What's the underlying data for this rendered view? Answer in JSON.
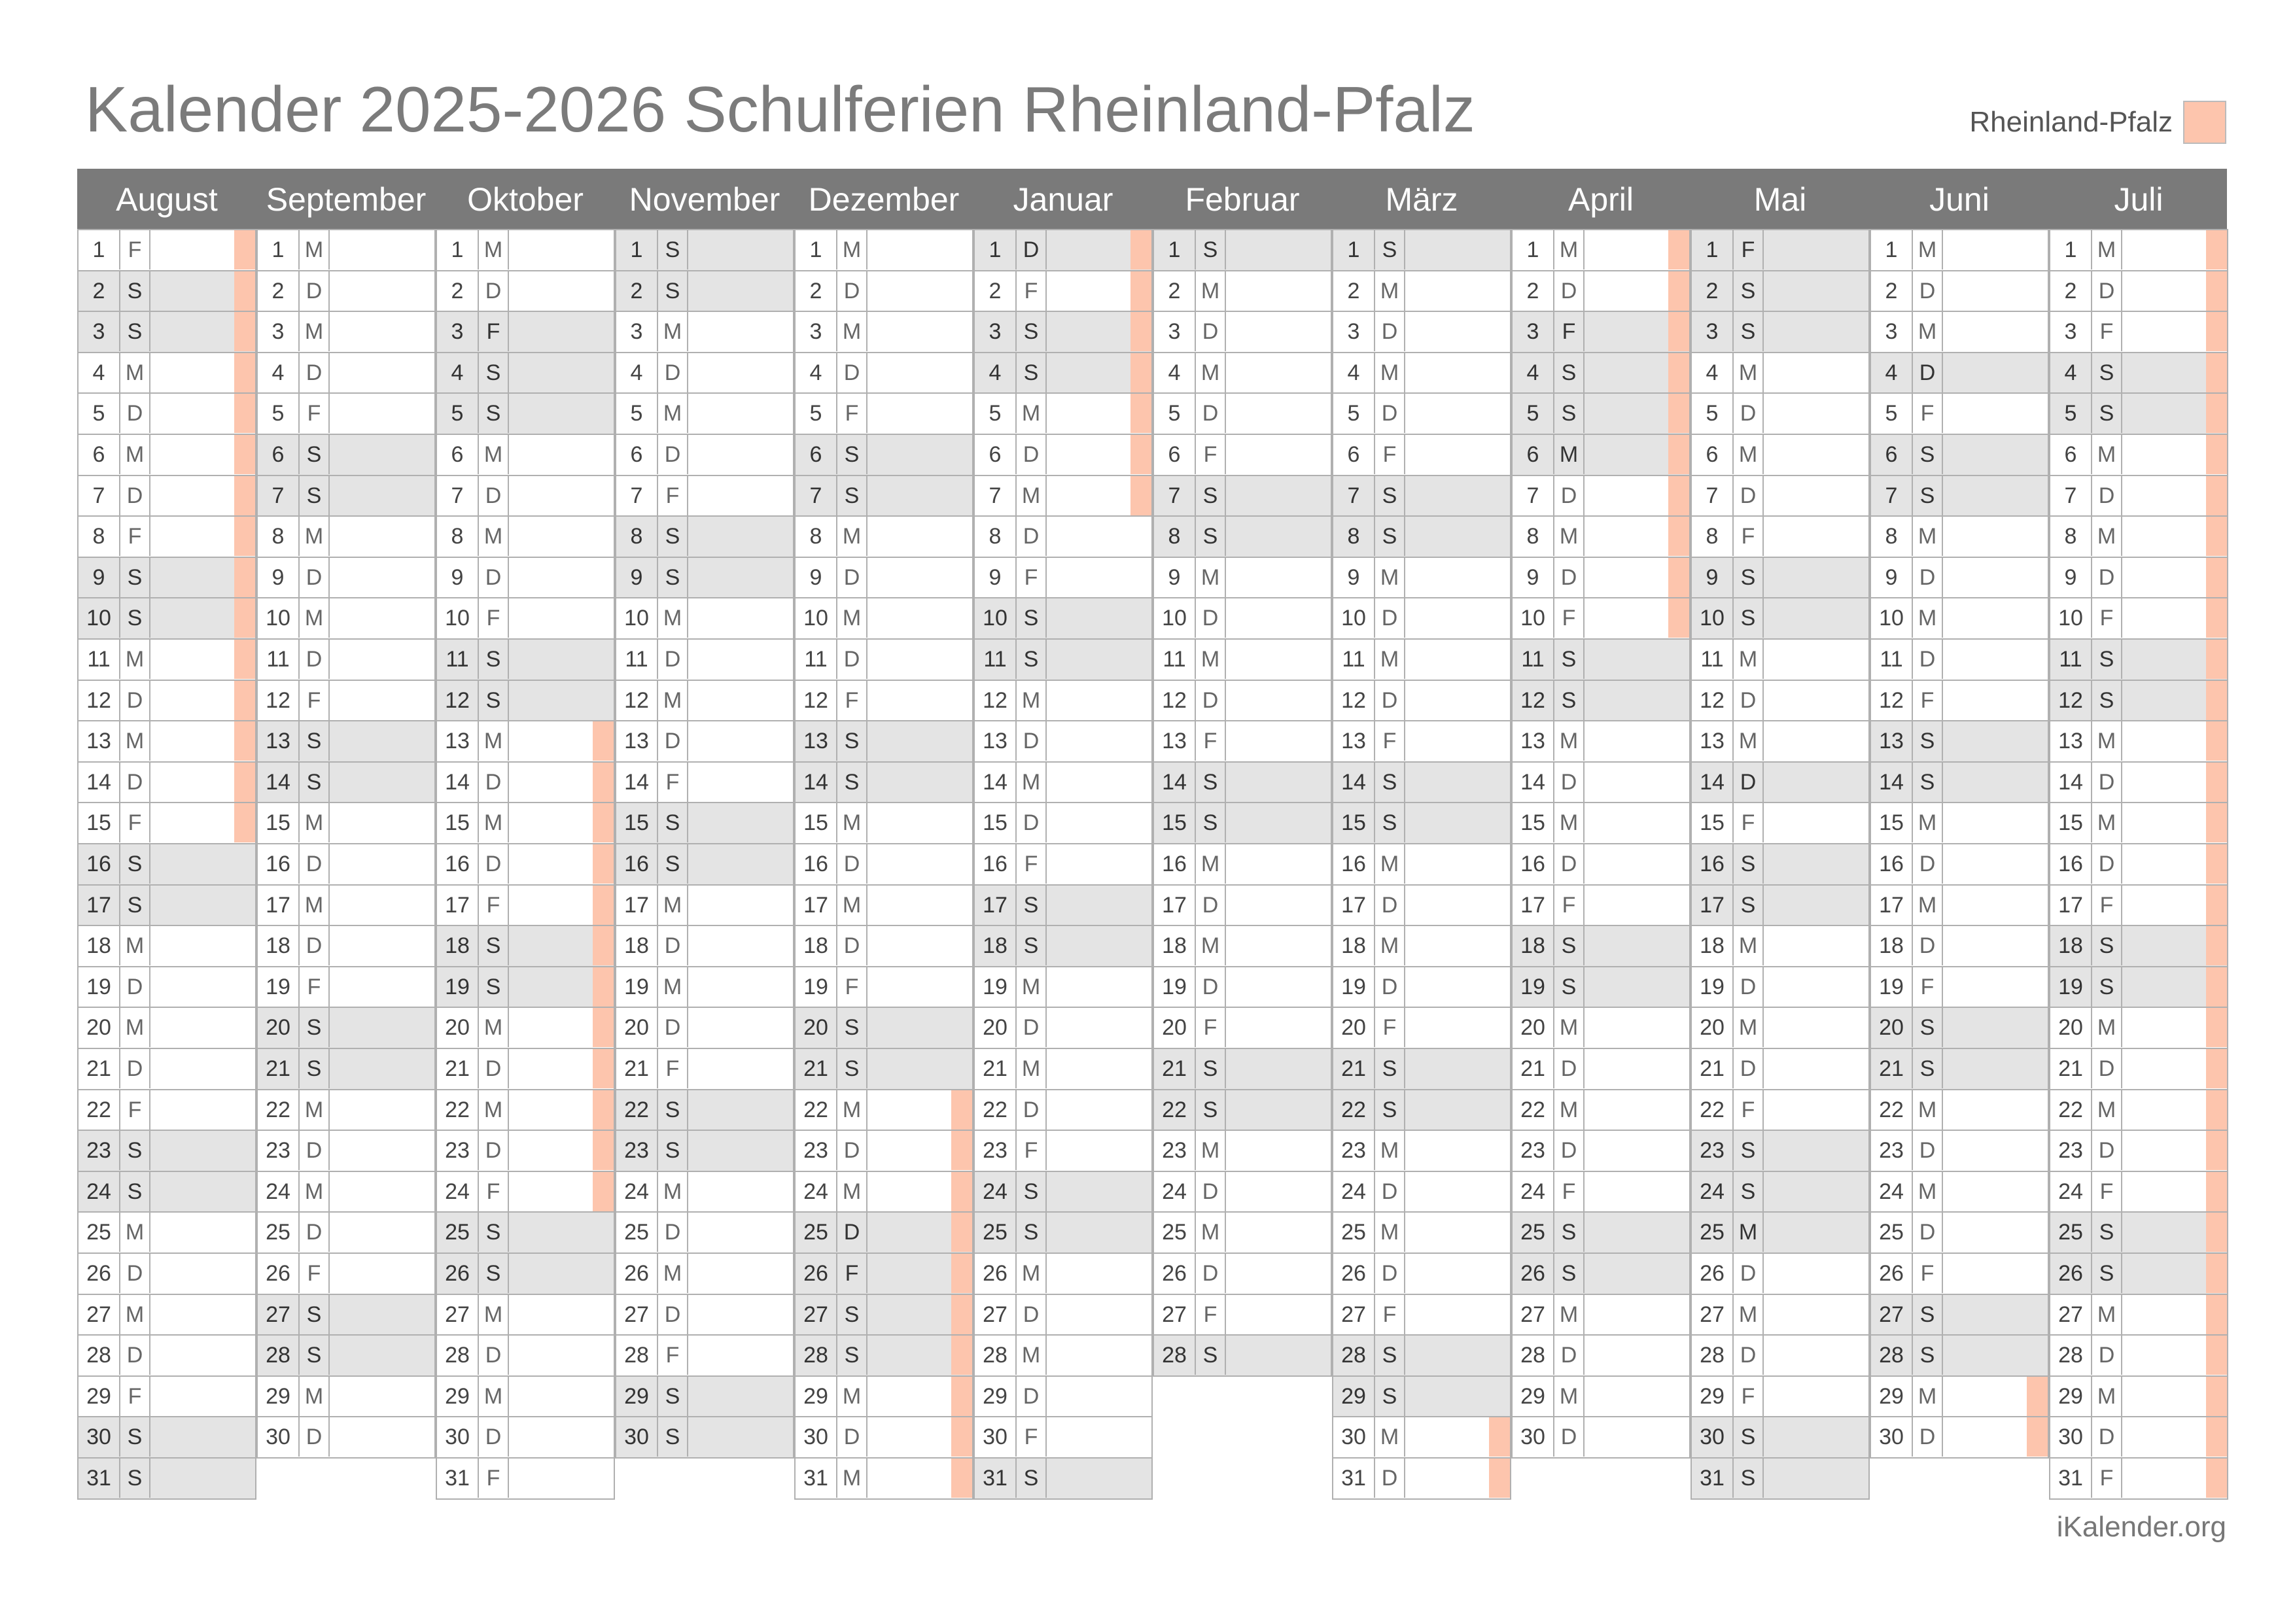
{
  "title": "Kalender 2025-2026 Schulferien Rheinland-Pfalz",
  "legend": {
    "label": "Rheinland-Pfalz",
    "color": "#fdc5ad"
  },
  "footer": "iKalender.org",
  "colors": {
    "header": "#7a7a7a",
    "weekend": "#e4e4e4",
    "vacation": "#fdc5ad"
  },
  "months": [
    {
      "name": "August",
      "days": 31,
      "start": "F",
      "vacation": [
        1,
        2,
        3,
        4,
        5,
        6,
        7,
        8,
        9,
        10,
        11,
        12,
        13,
        14,
        15
      ]
    },
    {
      "name": "September",
      "days": 30,
      "start": "M",
      "vacation": []
    },
    {
      "name": "Oktober",
      "days": 31,
      "start": "M",
      "vacation": [
        13,
        14,
        15,
        16,
        17,
        18,
        19,
        20,
        21,
        22,
        23,
        24
      ]
    },
    {
      "name": "November",
      "days": 30,
      "start": "S",
      "vacation": []
    },
    {
      "name": "Dezember",
      "days": 31,
      "start": "M",
      "vacation": [
        22,
        23,
        24,
        25,
        26,
        27,
        28,
        29,
        30,
        31
      ]
    },
    {
      "name": "Januar",
      "days": 31,
      "start": "D",
      "vacation": [
        1,
        2,
        3,
        4,
        5,
        6,
        7
      ]
    },
    {
      "name": "Februar",
      "days": 28,
      "start": "S",
      "vacation": []
    },
    {
      "name": "März",
      "days": 31,
      "start": "S",
      "vacation": [
        30,
        31
      ]
    },
    {
      "name": "April",
      "days": 30,
      "start": "M",
      "vacation": [
        1,
        2,
        3,
        4,
        5,
        6,
        7,
        8,
        9,
        10
      ]
    },
    {
      "name": "Mai",
      "days": 31,
      "start": "F",
      "vacation": []
    },
    {
      "name": "Juni",
      "days": 30,
      "start": "M",
      "vacation": [
        29,
        30
      ]
    },
    {
      "name": "Juli",
      "days": 31,
      "start": "M",
      "vacation": [
        1,
        2,
        3,
        4,
        5,
        6,
        7,
        8,
        9,
        10,
        11,
        12,
        13,
        14,
        15,
        16,
        17,
        18,
        19,
        20,
        21,
        22,
        23,
        24,
        25,
        26,
        27,
        28,
        29,
        30,
        31
      ]
    }
  ],
  "holidays": {
    "Oktober": [
      3
    ],
    "Dezember": [
      25,
      26
    ],
    "Januar": [
      1
    ],
    "April": [
      3,
      6
    ],
    "Mai": [
      1,
      14,
      25
    ],
    "Juni": [
      4
    ]
  },
  "weekday_letters": [
    "M",
    "D",
    "M",
    "D",
    "F",
    "S",
    "S"
  ]
}
